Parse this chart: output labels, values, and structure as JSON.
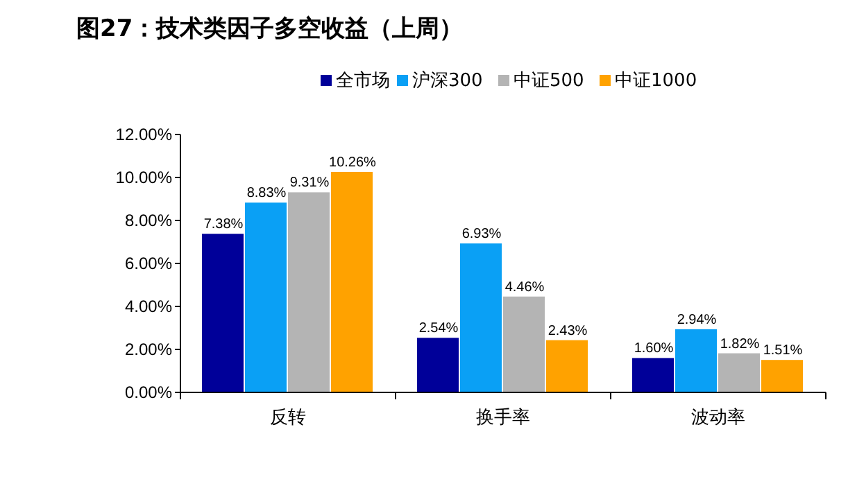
{
  "chart_data": {
    "type": "bar",
    "title": "图27：技术类因子多空收益（上周）",
    "categories": [
      "反转",
      "换手率",
      "波动率"
    ],
    "series": [
      {
        "name": "全市场",
        "color": "#000099",
        "values": [
          7.38,
          2.54,
          1.6
        ],
        "value_labels": [
          "7.38%",
          "2.54%",
          "1.60%"
        ]
      },
      {
        "name": "沪深300",
        "color": "#0aa0f5",
        "values": [
          8.83,
          6.93,
          2.94
        ],
        "value_labels": [
          "8.83%",
          "6.93%",
          "2.94%"
        ]
      },
      {
        "name": "中证500",
        "color": "#b4b4b4",
        "values": [
          9.31,
          4.46,
          1.82
        ],
        "value_labels": [
          "9.31%",
          "4.46%",
          "1.82%"
        ]
      },
      {
        "name": "中证1000",
        "color": "#ffa200",
        "values": [
          10.26,
          2.43,
          1.51
        ],
        "value_labels": [
          "10.26%",
          "2.43%",
          "1.51%"
        ]
      }
    ],
    "ylim": [
      0,
      12
    ],
    "yticks": [
      {
        "value": 0,
        "label": "0.00%"
      },
      {
        "value": 2,
        "label": "2.00%"
      },
      {
        "value": 4,
        "label": "4.00%"
      },
      {
        "value": 6,
        "label": "6.00%"
      },
      {
        "value": 8,
        "label": "8.00%"
      },
      {
        "value": 10,
        "label": "10.00%"
      },
      {
        "value": 12,
        "label": "12.00%"
      }
    ],
    "legend": "top",
    "grid": false
  }
}
